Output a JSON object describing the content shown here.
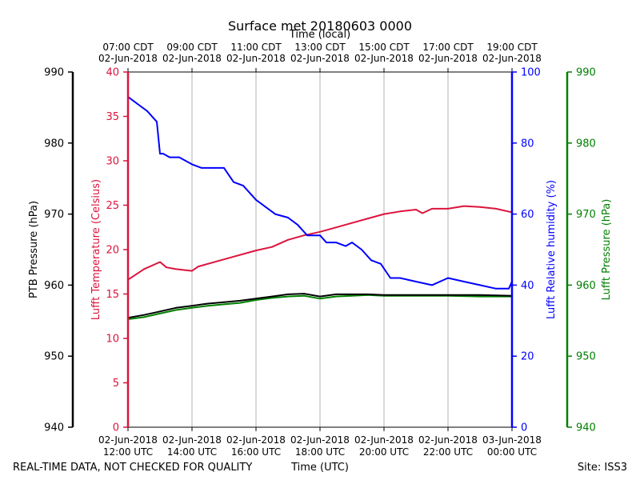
{
  "chart_data": {
    "type": "line",
    "title": "Surface met 20180603 0000",
    "top_axis": {
      "label": "Time (local)",
      "ticks": [
        {
          "line1": "07:00 CDT",
          "line2": "02-Jun-2018"
        },
        {
          "line1": "09:00 CDT",
          "line2": "02-Jun-2018"
        },
        {
          "line1": "11:00 CDT",
          "line2": "02-Jun-2018"
        },
        {
          "line1": "13:00 CDT",
          "line2": "02-Jun-2018"
        },
        {
          "line1": "15:00 CDT",
          "line2": "02-Jun-2018"
        },
        {
          "line1": "17:00 CDT",
          "line2": "02-Jun-2018"
        },
        {
          "line1": "19:00 CDT",
          "line2": "02-Jun-2018"
        }
      ]
    },
    "bottom_axis": {
      "label": "Time (UTC)",
      "xlim_hours_utc": [
        12,
        24
      ],
      "ticks": [
        {
          "line1": "02-Jun-2018",
          "line2": "12:00 UTC"
        },
        {
          "line1": "02-Jun-2018",
          "line2": "14:00 UTC"
        },
        {
          "line1": "02-Jun-2018",
          "line2": "16:00 UTC"
        },
        {
          "line1": "02-Jun-2018",
          "line2": "18:00 UTC"
        },
        {
          "line1": "02-Jun-2018",
          "line2": "20:00 UTC"
        },
        {
          "line1": "02-Jun-2018",
          "line2": "22:00 UTC"
        },
        {
          "line1": "03-Jun-2018",
          "line2": "00:00 UTC"
        }
      ]
    },
    "axes": {
      "ptb_pressure": {
        "label": "PTB Pressure (hPa)",
        "color": "#000000",
        "ylim": [
          940,
          990
        ],
        "ticks": [
          "990",
          "980",
          "970",
          "960",
          "950",
          "940"
        ]
      },
      "temperature": {
        "label": "Lufft Temperature (Celsius)",
        "color": "#dc143c",
        "ylim": [
          0,
          40
        ],
        "ticks": [
          "40",
          "35",
          "30",
          "25",
          "20",
          "15",
          "10",
          "5",
          "0"
        ]
      },
      "humidity": {
        "label": "Lufft Relative humidity (%)",
        "color": "#0000ff",
        "ylim": [
          0,
          100
        ],
        "ticks": [
          "100",
          "80",
          "60",
          "40",
          "20",
          "0"
        ]
      },
      "lufft_pressure": {
        "label": "Lufft Pressure (hPa)",
        "color": "#008000",
        "ylim": [
          940,
          990
        ],
        "ticks": [
          "990",
          "980",
          "970",
          "960",
          "950",
          "940"
        ]
      }
    },
    "series": [
      {
        "name": "Lufft Temperature",
        "axis": "temperature",
        "color": "#dc143c",
        "x": [
          12.0,
          12.5,
          13.0,
          13.2,
          13.5,
          14.0,
          14.2,
          15.0,
          16.0,
          16.5,
          17.0,
          17.5,
          18.0,
          18.5,
          19.0,
          19.5,
          20.0,
          20.5,
          21.0,
          21.2,
          21.5,
          22.0,
          22.5,
          23.0,
          23.5,
          24.0
        ],
        "values": [
          16.6,
          17.8,
          18.6,
          18.0,
          17.8,
          17.6,
          18.1,
          18.9,
          19.9,
          20.3,
          21.1,
          21.6,
          22.0,
          22.5,
          23.0,
          23.5,
          24.0,
          24.3,
          24.5,
          24.1,
          24.6,
          24.6,
          24.9,
          24.8,
          24.6,
          24.2
        ]
      },
      {
        "name": "Lufft Relative humidity",
        "axis": "humidity",
        "color": "#0000ff",
        "x": [
          12.0,
          12.3,
          12.6,
          12.9,
          13.0,
          13.1,
          13.3,
          13.6,
          14.0,
          14.3,
          14.6,
          15.0,
          15.3,
          15.6,
          16.0,
          16.3,
          16.6,
          17.0,
          17.3,
          17.6,
          18.0,
          18.2,
          18.5,
          18.8,
          19.0,
          19.3,
          19.6,
          19.9,
          20.2,
          20.5,
          21.0,
          21.5,
          22.0,
          22.5,
          23.0,
          23.5,
          23.9,
          24.0
        ],
        "values": [
          93,
          91,
          89,
          86,
          77,
          77,
          76,
          76,
          74,
          73,
          73,
          73,
          69,
          68,
          64,
          62,
          60,
          59,
          57,
          54,
          54,
          52,
          52,
          51,
          52,
          50,
          47,
          46,
          42,
          42,
          41,
          40,
          42,
          41,
          40,
          39,
          39,
          41
        ]
      },
      {
        "name": "PTB Pressure",
        "axis": "ptb_pressure",
        "color": "#000000",
        "x": [
          12.0,
          12.5,
          13.0,
          13.5,
          14.0,
          14.5,
          15.0,
          15.5,
          16.0,
          16.5,
          17.0,
          17.5,
          18.0,
          18.5,
          19.0,
          19.5,
          20.0,
          21.0,
          22.0,
          23.0,
          24.0
        ],
        "values": [
          955.4,
          955.8,
          956.3,
          956.8,
          957.1,
          957.4,
          957.6,
          957.8,
          958.1,
          958.4,
          958.7,
          958.8,
          958.4,
          958.7,
          958.7,
          958.7,
          958.6,
          958.6,
          958.6,
          958.6,
          958.5
        ]
      },
      {
        "name": "Lufft Pressure",
        "axis": "lufft_pressure",
        "color": "#008000",
        "x": [
          12.0,
          12.5,
          13.0,
          13.5,
          14.0,
          14.5,
          15.0,
          15.5,
          16.0,
          16.5,
          17.0,
          17.5,
          18.0,
          18.5,
          19.0,
          19.5,
          20.0,
          21.0,
          22.0,
          23.0,
          24.0
        ],
        "values": [
          955.2,
          955.5,
          956.0,
          956.5,
          956.8,
          957.1,
          957.3,
          957.5,
          957.9,
          958.2,
          958.4,
          958.5,
          958.1,
          958.4,
          958.5,
          958.6,
          958.5,
          958.5,
          958.5,
          958.4,
          958.4
        ]
      }
    ],
    "grid": "vertical"
  },
  "footer": {
    "disclaimer": "REAL-TIME DATA, NOT CHECKED FOR QUALITY",
    "site": "Site: ISS3"
  }
}
